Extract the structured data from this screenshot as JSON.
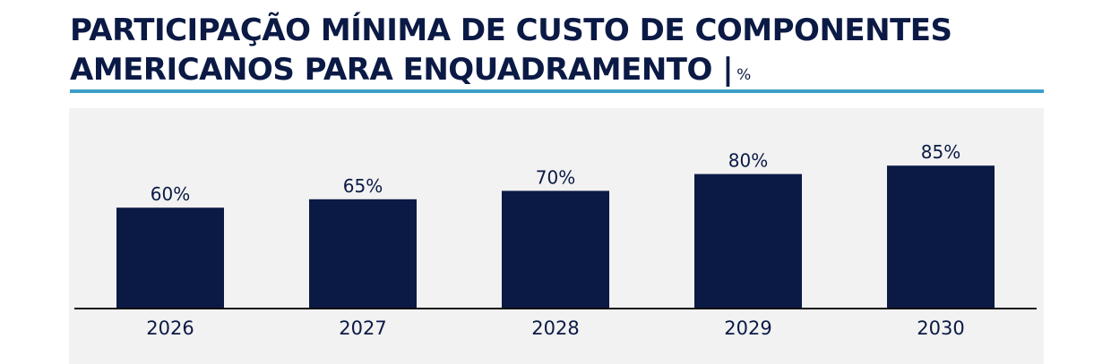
{
  "title": {
    "line1": "PARTICIPAÇÃO MÍNIMA DE CUSTO DE COMPONENTES",
    "line2": "AMERICANOS PARA ENQUADRAMENTO |",
    "unit": "%"
  },
  "colors": {
    "bar": "#0b1a45",
    "accent_rule": "#3d9fc7",
    "plot_background": "#f2f2f2",
    "text": "#0b1a45"
  },
  "chart_data": {
    "type": "bar",
    "title": "PARTICIPAÇÃO MÍNIMA DE CUSTO DE COMPONENTES AMERICANOS PARA ENQUADRAMENTO | %",
    "categories": [
      "2026",
      "2027",
      "2028",
      "2029",
      "2030"
    ],
    "values": [
      60,
      65,
      70,
      80,
      85
    ],
    "data_labels": [
      "60%",
      "65%",
      "70%",
      "80%",
      "85%"
    ],
    "xlabel": "",
    "ylabel": "",
    "ylim": [
      0,
      100
    ],
    "grid": false,
    "legend": "none"
  }
}
